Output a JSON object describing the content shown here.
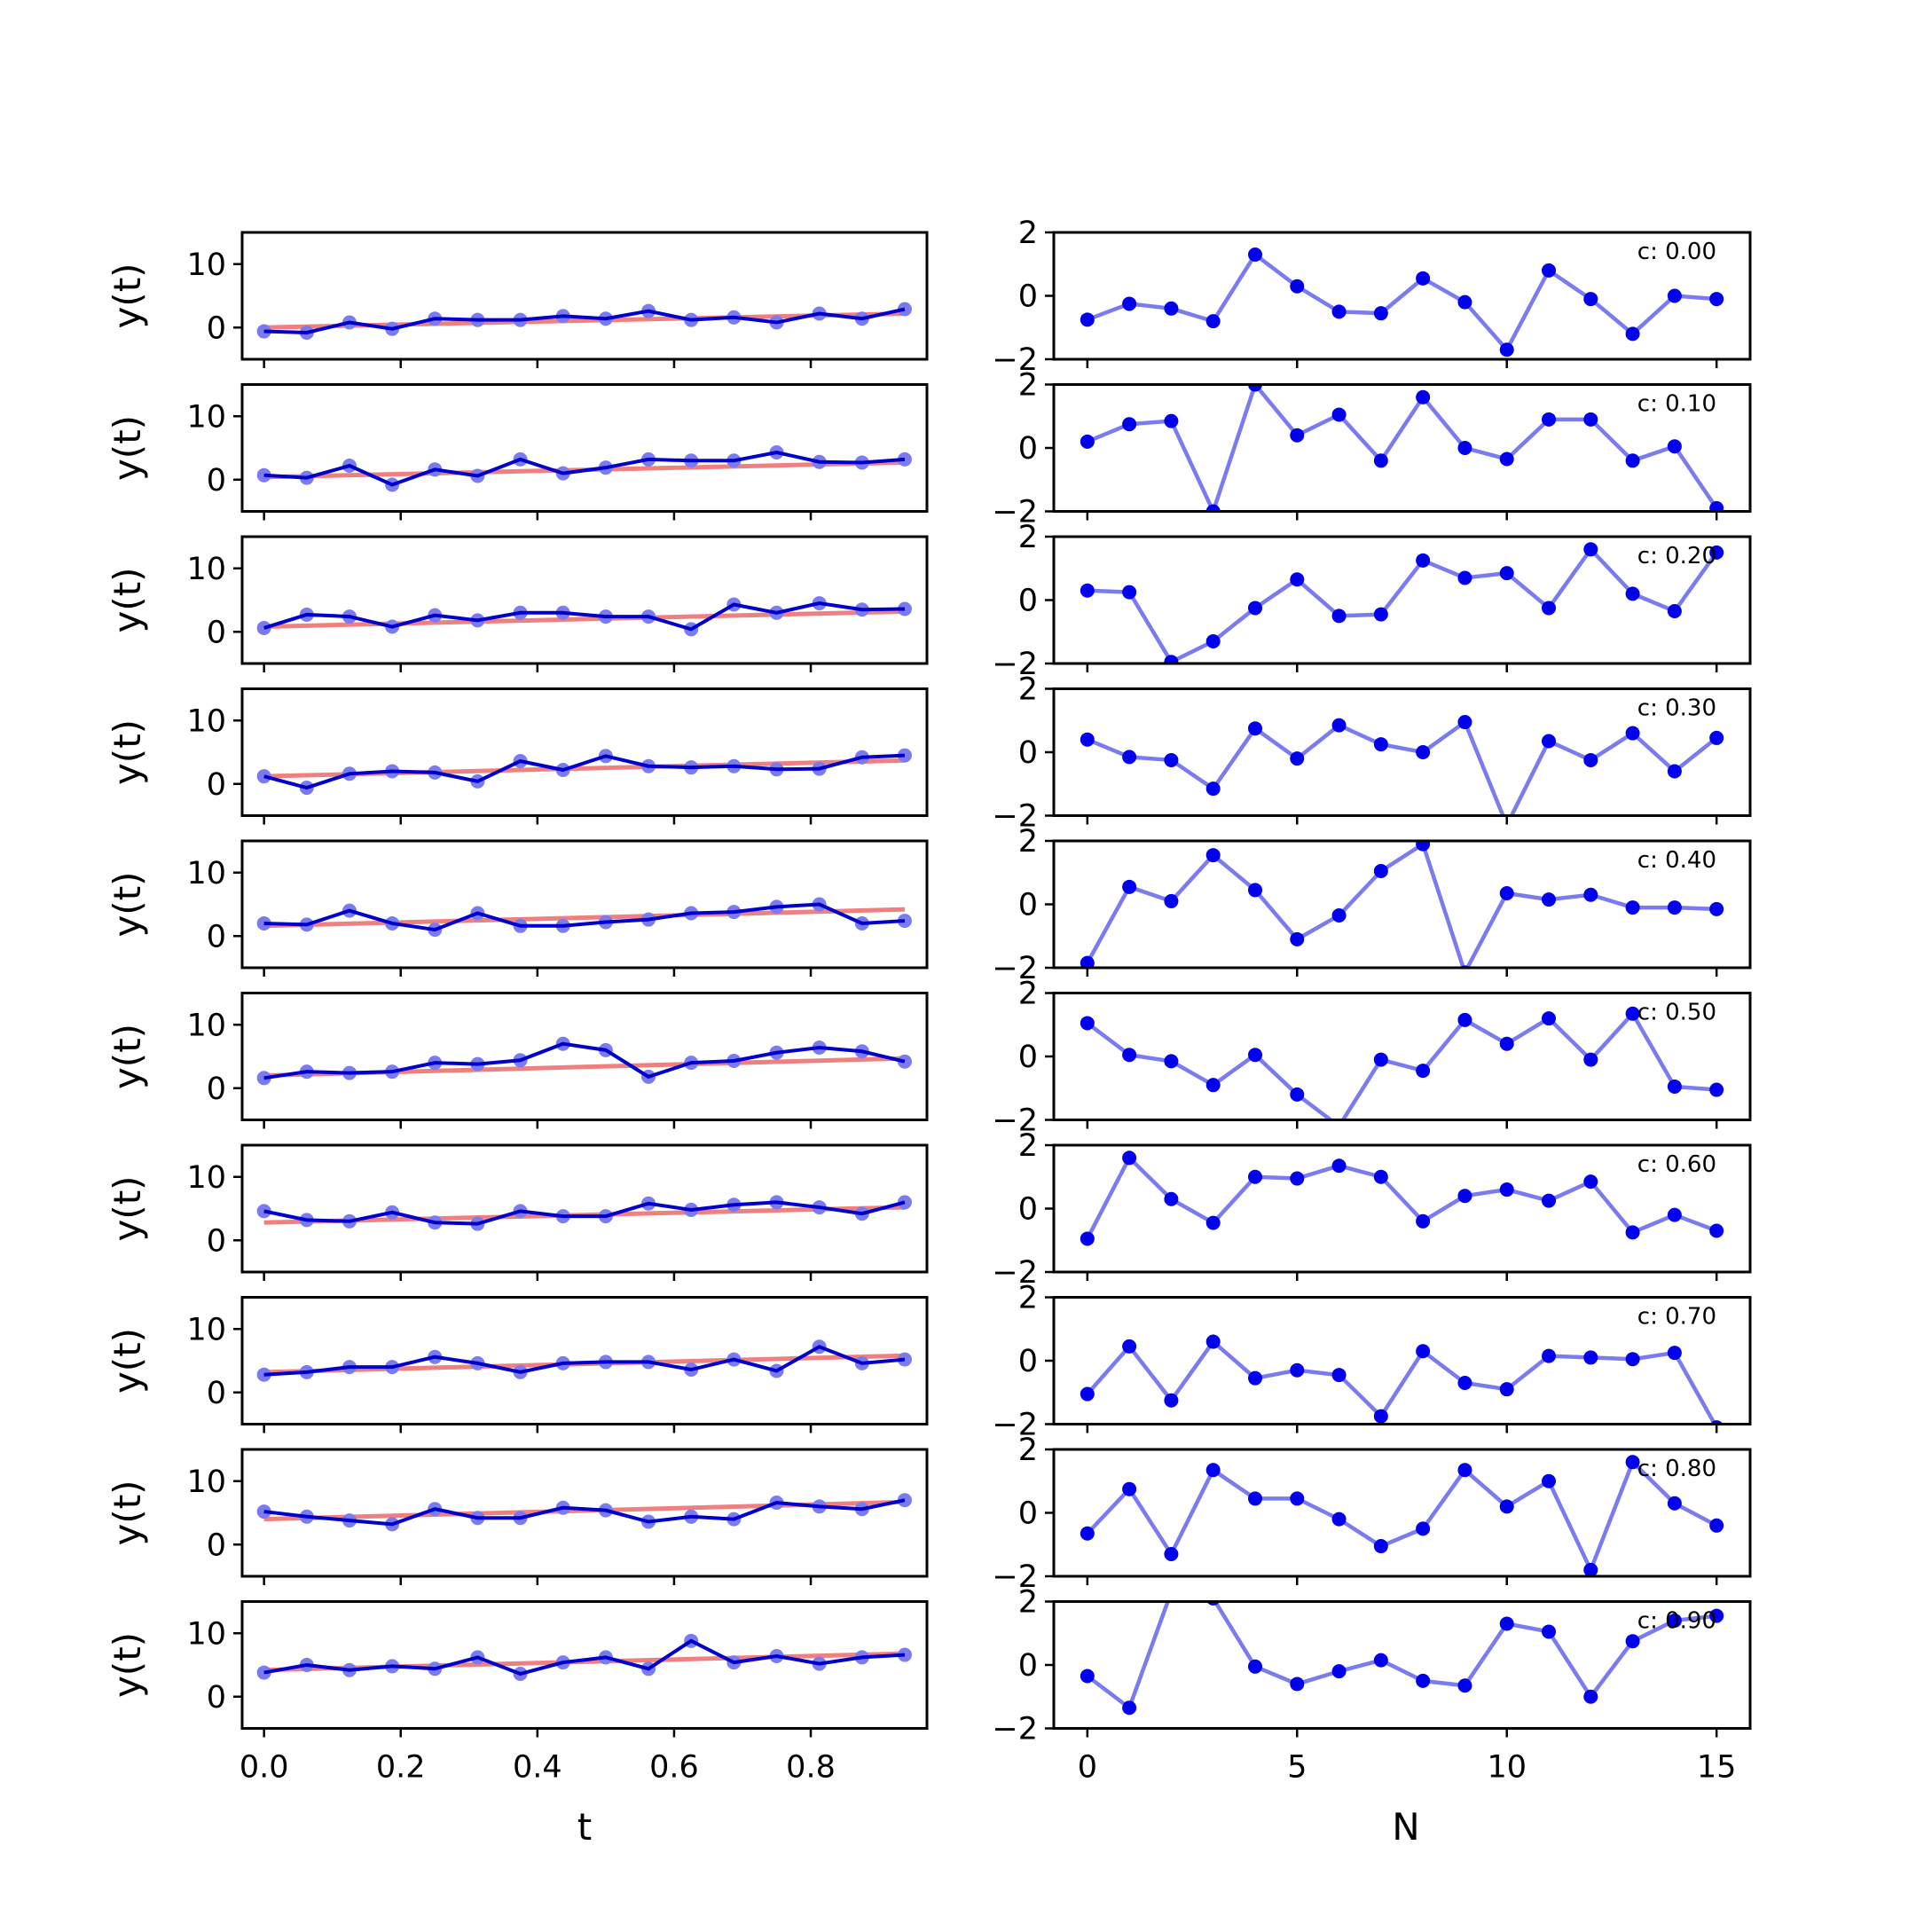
{
  "chart_data": {
    "type": "line",
    "left_panels": {
      "xlabel": "t",
      "ylabel": "y(t)",
      "xlim": [
        -0.032,
        0.97
      ],
      "ylim": [
        -5,
        15
      ],
      "yticks": [
        0,
        10
      ],
      "xticks": [
        0.0,
        0.2,
        0.4,
        0.6,
        0.8
      ],
      "xtick_labels": [
        "0.0",
        "0.2",
        "0.4",
        "0.6",
        "0.8"
      ],
      "x": [
        0,
        0.0625,
        0.125,
        0.1875,
        0.25,
        0.3125,
        0.375,
        0.4375,
        0.5,
        0.5625,
        0.625,
        0.6875,
        0.75,
        0.8125,
        0.875,
        0.9375
      ]
    },
    "right_panels": {
      "xlabel": "N",
      "xlim": [
        -0.8,
        15.8
      ],
      "ylim": [
        -2,
        2
      ],
      "yticks": [
        -2,
        0,
        2
      ],
      "xticks": [
        0,
        5,
        10,
        15
      ],
      "xtick_labels": [
        "0",
        "5",
        "10",
        "15"
      ],
      "x": [
        0,
        1,
        2,
        3,
        4,
        5,
        6,
        7,
        8,
        9,
        10,
        11,
        12,
        13,
        14,
        15
      ]
    },
    "rows": [
      {
        "c_label": "c: 0.00",
        "fit": [
          0.0,
          2.2
        ],
        "y": [
          -0.6,
          -0.8,
          0.8,
          -0.2,
          1.4,
          1.2,
          1.2,
          1.8,
          1.4,
          2.6,
          1.2,
          1.6,
          0.8,
          2.2,
          1.4,
          2.9
        ],
        "noise": [
          -0.75,
          -0.25,
          -0.4,
          -0.8,
          1.3,
          0.3,
          -0.5,
          -0.55,
          0.55,
          -0.2,
          -1.7,
          0.8,
          -0.1,
          -1.2,
          0.0,
          -0.1
        ]
      },
      {
        "c_label": "c: 0.10",
        "fit": [
          0.4,
          2.7
        ],
        "y": [
          0.7,
          0.3,
          2.2,
          -0.8,
          1.6,
          0.6,
          3.2,
          1.0,
          1.9,
          3.2,
          3.0,
          3.0,
          4.3,
          2.8,
          2.7,
          3.2
        ],
        "noise": [
          0.2,
          0.75,
          0.85,
          -2.0,
          2.0,
          0.4,
          1.05,
          -0.4,
          1.6,
          0.0,
          -0.35,
          0.9,
          0.9,
          -0.4,
          0.05,
          -1.9
        ]
      },
      {
        "c_label": "c: 0.20",
        "fit": [
          0.8,
          3.2
        ],
        "y": [
          0.6,
          2.7,
          2.4,
          0.8,
          2.6,
          1.8,
          3.0,
          3.0,
          2.4,
          2.4,
          0.4,
          4.3,
          3.0,
          4.5,
          3.5,
          3.6
        ],
        "noise": [
          0.3,
          0.25,
          -1.95,
          -1.3,
          -0.25,
          0.65,
          -0.5,
          -0.45,
          1.25,
          0.7,
          0.85,
          -0.25,
          1.6,
          0.2,
          -0.35,
          1.5
        ]
      },
      {
        "c_label": "c: 0.30",
        "fit": [
          1.2,
          3.7
        ],
        "y": [
          1.2,
          -0.6,
          1.6,
          2.0,
          1.8,
          0.4,
          3.6,
          2.2,
          4.4,
          2.8,
          2.6,
          2.8,
          2.3,
          2.4,
          4.2,
          4.5
        ],
        "noise": [
          0.4,
          -0.15,
          -0.25,
          -1.15,
          0.75,
          -0.2,
          0.85,
          0.25,
          0.0,
          0.95,
          -2.3,
          0.35,
          -0.25,
          0.6,
          -0.6,
          0.45
        ]
      },
      {
        "c_label": "c: 0.40",
        "fit": [
          1.6,
          4.2
        ],
        "y": [
          2.0,
          1.8,
          4.0,
          2.0,
          1.0,
          3.6,
          1.6,
          1.6,
          2.2,
          2.6,
          3.6,
          3.8,
          4.6,
          5.0,
          2.0,
          2.4
        ],
        "noise": [
          -1.85,
          0.55,
          0.1,
          1.55,
          0.45,
          -1.1,
          -0.35,
          1.05,
          1.9,
          -2.15,
          0.35,
          0.15,
          0.3,
          -0.1,
          -0.1,
          -0.15
        ]
      },
      {
        "c_label": "c: 0.50",
        "fit": [
          2.0,
          4.7
        ],
        "y": [
          1.6,
          2.6,
          2.4,
          2.6,
          4.0,
          3.8,
          4.4,
          7.0,
          6.0,
          1.8,
          4.0,
          4.3,
          5.6,
          6.4,
          5.8,
          4.2
        ],
        "noise": [
          1.05,
          0.05,
          -0.15,
          -0.9,
          0.05,
          -1.2,
          -2.2,
          -0.1,
          -0.45,
          1.15,
          0.4,
          1.2,
          -0.1,
          1.35,
          -0.95,
          -1.05
        ]
      },
      {
        "c_label": "c: 0.60",
        "fit": [
          2.8,
          5.2
        ],
        "y": [
          4.6,
          3.2,
          3.0,
          4.4,
          2.8,
          2.6,
          4.6,
          3.8,
          3.8,
          5.8,
          4.8,
          5.6,
          6.0,
          5.2,
          4.2,
          6.0
        ],
        "noise": [
          -0.95,
          1.6,
          0.3,
          -0.45,
          1.0,
          0.95,
          1.35,
          1.0,
          -0.4,
          0.4,
          0.6,
          0.25,
          0.85,
          -0.75,
          -0.2,
          -0.7
        ]
      },
      {
        "c_label": "c: 0.70",
        "fit": [
          3.2,
          5.8
        ],
        "y": [
          2.8,
          3.2,
          4.0,
          4.0,
          5.6,
          4.6,
          3.2,
          4.6,
          4.8,
          4.8,
          3.6,
          5.2,
          3.4,
          7.2,
          4.6,
          5.2
        ],
        "noise": [
          -1.05,
          0.45,
          -1.25,
          0.6,
          -0.55,
          -0.3,
          -0.45,
          -1.75,
          0.3,
          -0.7,
          -0.9,
          0.15,
          0.1,
          0.05,
          0.25,
          -2.1
        ]
      },
      {
        "c_label": "c: 0.80",
        "fit": [
          4.0,
          6.7
        ],
        "y": [
          5.2,
          4.4,
          3.8,
          3.2,
          5.6,
          4.2,
          4.2,
          5.8,
          5.4,
          3.6,
          4.4,
          4.0,
          6.6,
          6.0,
          5.6,
          7.0
        ],
        "noise": [
          -0.65,
          0.75,
          -1.3,
          1.35,
          0.45,
          0.45,
          -0.2,
          -1.05,
          -0.5,
          1.35,
          0.2,
          1.0,
          -1.8,
          1.6,
          0.3,
          -0.4
        ]
      },
      {
        "c_label": "c: 0.90",
        "fit": [
          4.2,
          6.8
        ],
        "y": [
          3.8,
          5.0,
          4.2,
          4.8,
          4.4,
          6.2,
          3.6,
          5.4,
          6.2,
          4.4,
          8.8,
          5.4,
          6.4,
          5.2,
          6.2,
          6.6
        ],
        "noise": [
          -0.35,
          -1.35,
          2.3,
          2.1,
          -0.05,
          -0.6,
          -0.2,
          0.15,
          -0.5,
          -0.65,
          1.3,
          1.05,
          -1.0,
          0.75,
          1.4,
          1.55
        ]
      }
    ]
  }
}
